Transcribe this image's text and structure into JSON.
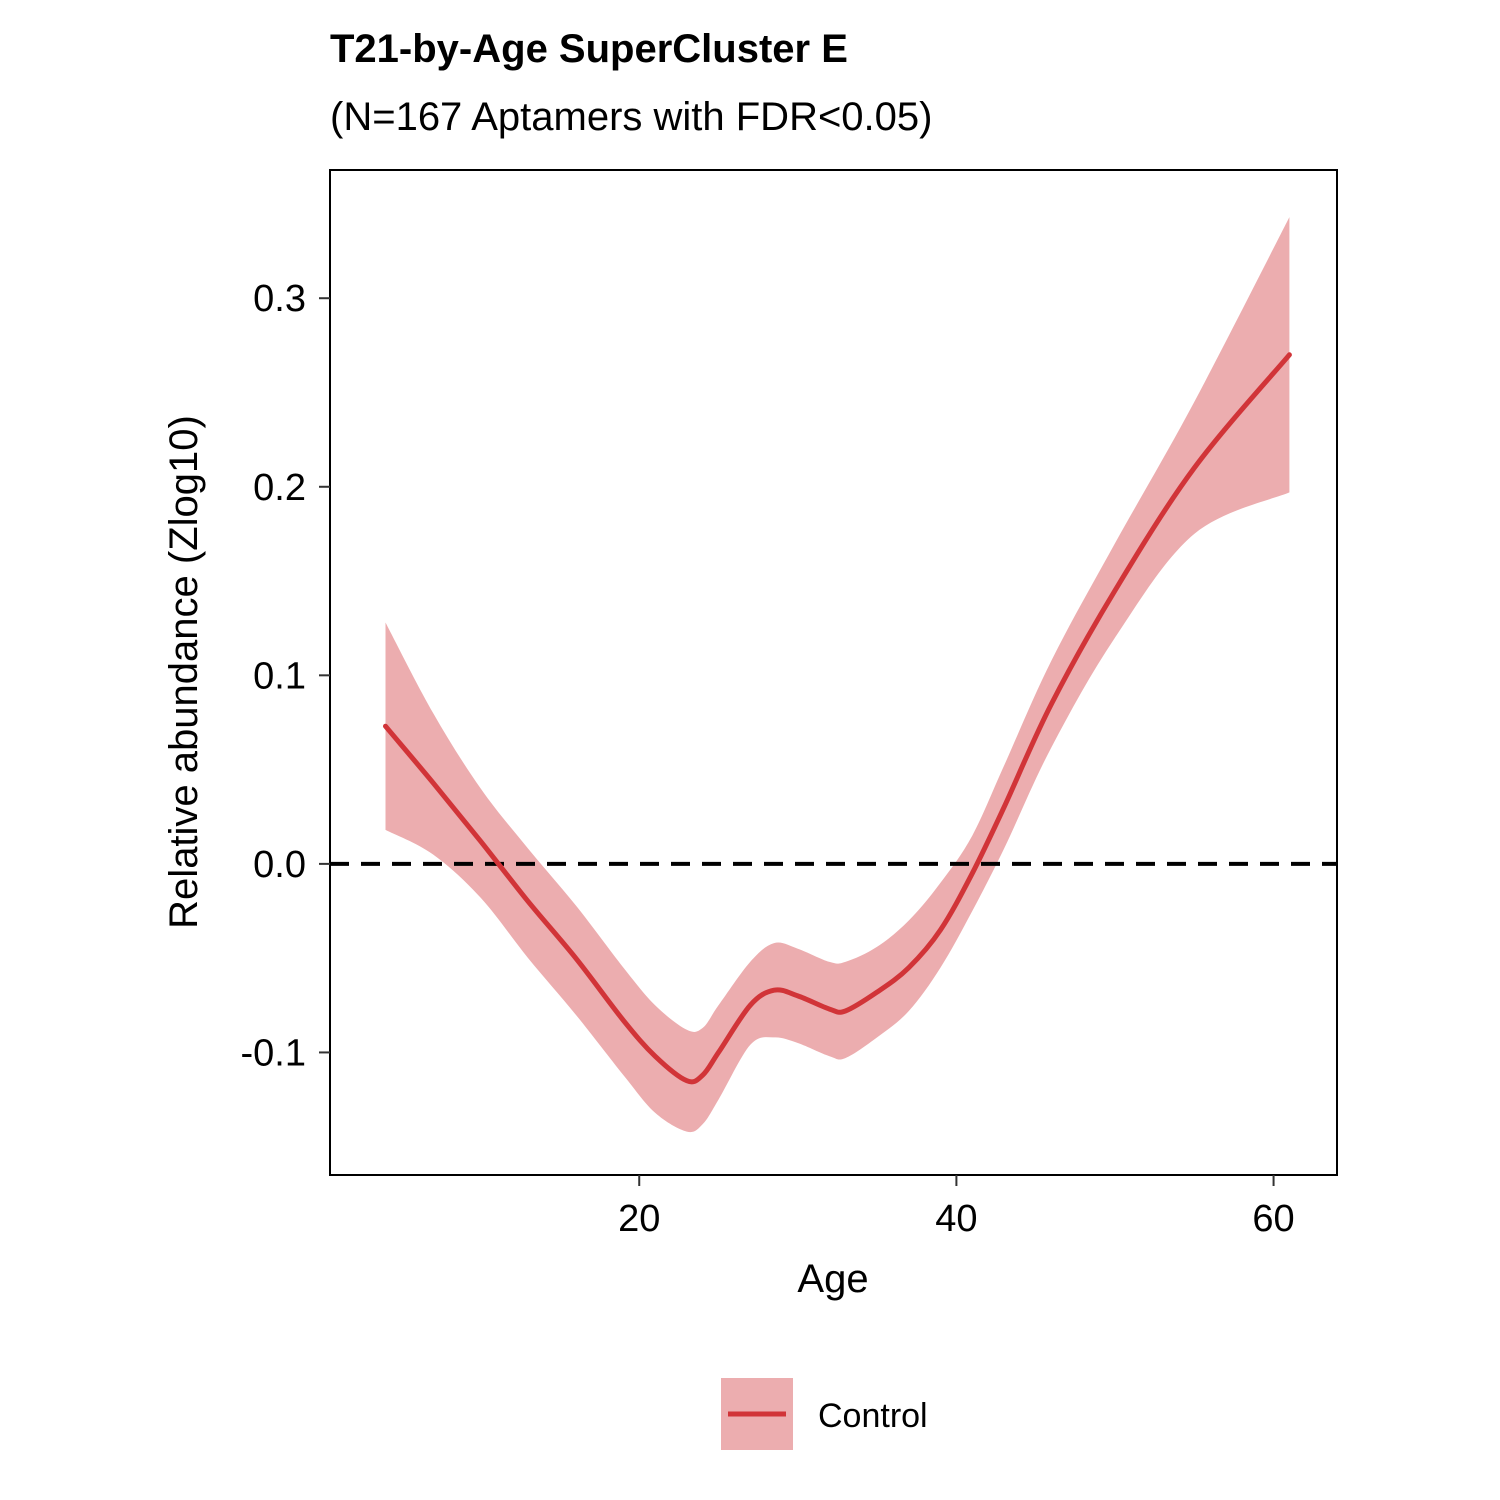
{
  "chart_data": {
    "type": "line",
    "title": "T21-by-Age SuperCluster E",
    "subtitle": "(N=167 Aptamers with FDR<0.05)",
    "xlabel": "Age",
    "ylabel": "Relative abundance (Zlog10)",
    "xlim": [
      0.5,
      64
    ],
    "ylim": [
      -0.165,
      0.368
    ],
    "xticks": [
      20,
      40,
      60
    ],
    "xtick_labels": [
      "20",
      "40",
      "60"
    ],
    "yticks": [
      -0.1,
      0.0,
      0.1,
      0.2,
      0.3
    ],
    "ytick_labels": [
      "-0.1",
      "0.0",
      "0.1",
      "0.2",
      "0.3"
    ],
    "grid": false,
    "legend_position": "bottom",
    "reference_line": {
      "y": 0.0,
      "style": "dashed",
      "color": "#000000"
    },
    "series": [
      {
        "name": "Control",
        "color": "#D13438",
        "ribbon_color": "#ECADAF",
        "x": [
          4,
          7,
          10,
          13,
          16,
          19,
          21,
          23,
          24,
          25,
          27,
          28.5,
          30,
          32,
          33,
          35,
          37,
          39,
          41,
          43,
          46,
          50,
          55,
          61
        ],
        "y": [
          0.073,
          0.043,
          0.012,
          -0.02,
          -0.05,
          -0.083,
          -0.102,
          -0.115,
          -0.112,
          -0.1,
          -0.075,
          -0.067,
          -0.07,
          -0.077,
          -0.078,
          -0.068,
          -0.055,
          -0.035,
          -0.005,
          0.03,
          0.085,
          0.145,
          0.21,
          0.27
        ],
        "lower": [
          0.018,
          0.005,
          -0.018,
          -0.05,
          -0.08,
          -0.112,
          -0.132,
          -0.142,
          -0.138,
          -0.125,
          -0.096,
          -0.092,
          -0.095,
          -0.102,
          -0.103,
          -0.092,
          -0.078,
          -0.055,
          -0.025,
          0.008,
          0.062,
          0.12,
          0.175,
          0.197
        ],
        "upper": [
          0.128,
          0.08,
          0.04,
          0.008,
          -0.022,
          -0.055,
          -0.075,
          -0.088,
          -0.087,
          -0.075,
          -0.052,
          -0.042,
          -0.045,
          -0.052,
          -0.052,
          -0.044,
          -0.03,
          -0.01,
          0.015,
          0.052,
          0.108,
          0.17,
          0.245,
          0.343
        ]
      }
    ]
  }
}
